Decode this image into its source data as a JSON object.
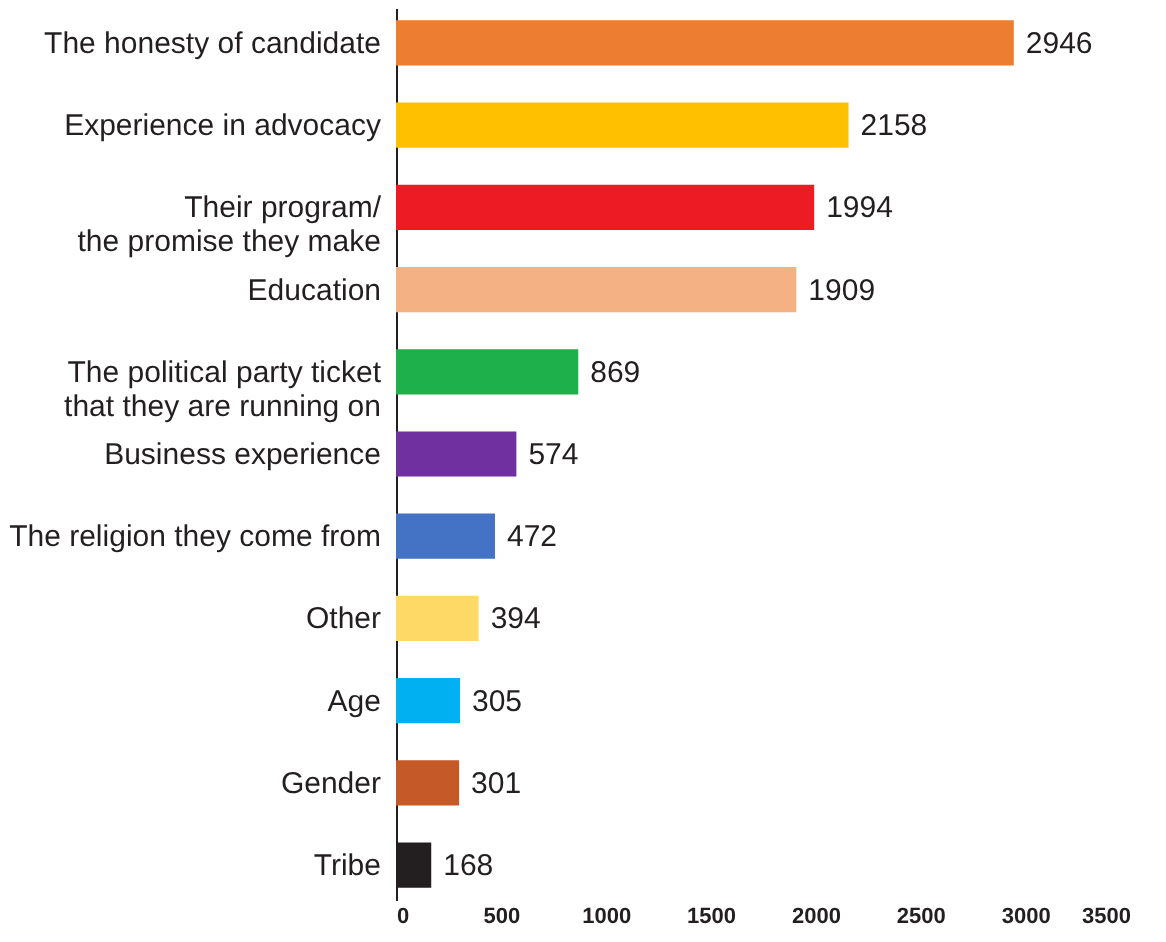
{
  "chart_data": {
    "type": "bar",
    "orientation": "horizontal",
    "data_labels": true,
    "categories": [
      "The honesty of candidate",
      "Experience in advocacy",
      "Their program/\nthe promise they make",
      "Education",
      "The political party ticket\nthat they are running on",
      "Business experience",
      "The religion they come from",
      "Other",
      "Age",
      "Gender",
      "Tribe"
    ],
    "values": [
      2946,
      2158,
      1994,
      1909,
      869,
      574,
      472,
      394,
      305,
      301,
      168
    ],
    "colors": [
      "#ed7d31",
      "#ffc000",
      "#ed1c24",
      "#f4b183",
      "#1db04b",
      "#7030a0",
      "#4472c4",
      "#ffd966",
      "#00b0f0",
      "#c55a28",
      "#231f20"
    ],
    "xlim": [
      0,
      3500
    ],
    "xticks": [
      0,
      500,
      1000,
      1500,
      2000,
      2500,
      3000,
      3500
    ]
  }
}
